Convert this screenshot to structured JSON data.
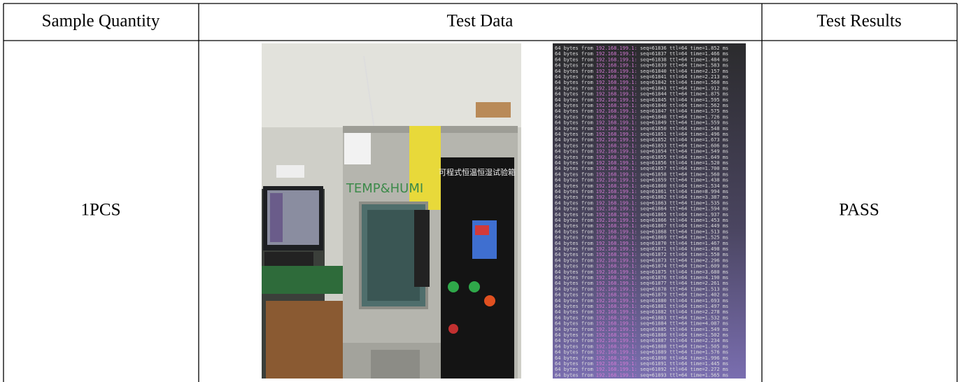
{
  "table": {
    "header": [
      "Sample Quantity",
      "Test Data",
      "Test Results"
    ],
    "rows": [
      [
        "1PCS",
        "PASS"
      ]
    ]
  },
  "photo": {
    "chamber_label": "TEMP&HUMI",
    "panel_title": "可程式恒温恒湿试验箱"
  },
  "terminal": {
    "lines": [
      [
        "64 bytes from",
        "192.168.199.1:",
        "seq=61836 ttl=64 time=1.852 ms"
      ],
      [
        "64 bytes from",
        "192.168.199.1:",
        "seq=61837 ttl=64 time=1.466 ms"
      ],
      [
        "64 bytes from",
        "192.168.199.1:",
        "seq=61838 ttl=64 time=1.484 ms"
      ],
      [
        "64 bytes from",
        "192.168.199.1:",
        "seq=61839 ttl=64 time=1.583 ms"
      ],
      [
        "64 bytes from",
        "192.168.199.1:",
        "seq=61840 ttl=64 time=2.157 ms"
      ],
      [
        "64 bytes from",
        "192.168.199.1:",
        "seq=61841 ttl=64 time=2.213 ms"
      ],
      [
        "64 bytes from",
        "192.168.199.1:",
        "seq=61842 ttl=64 time=1.560 ms"
      ],
      [
        "64 bytes from",
        "192.168.199.1:",
        "seq=61843 ttl=64 time=1.912 ms"
      ],
      [
        "64 bytes from",
        "192.168.199.1:",
        "seq=61844 ttl=64 time=1.875 ms"
      ],
      [
        "64 bytes from",
        "192.168.199.1:",
        "seq=61845 ttl=64 time=1.595 ms"
      ],
      [
        "64 bytes from",
        "192.168.199.1:",
        "seq=61846 ttl=64 time=1.562 ms"
      ],
      [
        "64 bytes from",
        "192.168.199.1:",
        "seq=61847 ttl=64 time=1.575 ms"
      ],
      [
        "64 bytes from",
        "192.168.199.1:",
        "seq=61848 ttl=64 time=1.726 ms"
      ],
      [
        "64 bytes from",
        "192.168.199.1:",
        "seq=61849 ttl=64 time=1.559 ms"
      ],
      [
        "64 bytes from",
        "192.168.199.1:",
        "seq=61850 ttl=64 time=1.548 ms"
      ],
      [
        "64 bytes from",
        "192.168.199.1:",
        "seq=61851 ttl=64 time=1.496 ms"
      ],
      [
        "64 bytes from",
        "192.168.199.1:",
        "seq=61852 ttl=64 time=1.673 ms"
      ],
      [
        "64 bytes from",
        "192.168.199.1:",
        "seq=61853 ttl=64 time=1.606 ms"
      ],
      [
        "64 bytes from",
        "192.168.199.1:",
        "seq=61854 ttl=64 time=1.549 ms"
      ],
      [
        "64 bytes from",
        "192.168.199.1:",
        "seq=61855 ttl=64 time=1.649 ms"
      ],
      [
        "64 bytes from",
        "192.168.199.1:",
        "seq=61856 ttl=64 time=1.520 ms"
      ],
      [
        "64 bytes from",
        "192.168.199.1:",
        "seq=61857 ttl=64 time=1.700 ms"
      ],
      [
        "64 bytes from",
        "192.168.199.1:",
        "seq=61858 ttl=64 time=1.560 ms"
      ],
      [
        "64 bytes from",
        "192.168.199.1:",
        "seq=61859 ttl=64 time=1.438 ms"
      ],
      [
        "64 bytes from",
        "192.168.199.1:",
        "seq=61860 ttl=64 time=1.534 ms"
      ],
      [
        "64 bytes from",
        "192.168.199.1:",
        "seq=61861 ttl=64 time=8.994 ms"
      ],
      [
        "64 bytes from",
        "192.168.199.1:",
        "seq=61862 ttl=64 time=3.387 ms"
      ],
      [
        "64 bytes from",
        "192.168.199.1:",
        "seq=61863 ttl=64 time=1.535 ms"
      ],
      [
        "64 bytes from",
        "192.168.199.1:",
        "seq=61864 ttl=64 time=1.594 ms"
      ],
      [
        "64 bytes from",
        "192.168.199.1:",
        "seq=61865 ttl=64 time=1.937 ms"
      ],
      [
        "64 bytes from",
        "192.168.199.1:",
        "seq=61866 ttl=64 time=1.453 ms"
      ],
      [
        "64 bytes from",
        "192.168.199.1:",
        "seq=61867 ttl=64 time=1.449 ms"
      ],
      [
        "64 bytes from",
        "192.168.199.1:",
        "seq=61868 ttl=64 time=1.513 ms"
      ],
      [
        "64 bytes from",
        "192.168.199.1:",
        "seq=61869 ttl=64 time=1.525 ms"
      ],
      [
        "64 bytes from",
        "192.168.199.1:",
        "seq=61870 ttl=64 time=1.467 ms"
      ],
      [
        "64 bytes from",
        "192.168.199.1:",
        "seq=61871 ttl=64 time=1.498 ms"
      ],
      [
        "64 bytes from",
        "192.168.199.1:",
        "seq=61872 ttl=64 time=1.550 ms"
      ],
      [
        "64 bytes from",
        "192.168.199.1:",
        "seq=61873 ttl=64 time=2.296 ms"
      ],
      [
        "64 bytes from",
        "192.168.199.1:",
        "seq=61874 ttl=64 time=1.609 ms"
      ],
      [
        "64 bytes from",
        "192.168.199.1:",
        "seq=61875 ttl=64 time=3.680 ms"
      ],
      [
        "64 bytes from",
        "192.168.199.1:",
        "seq=61876 ttl=64 time=4.190 ms"
      ],
      [
        "64 bytes from",
        "192.168.199.1:",
        "seq=61877 ttl=64 time=2.261 ms"
      ],
      [
        "64 bytes from",
        "192.168.199.1:",
        "seq=61878 ttl=64 time=1.513 ms"
      ],
      [
        "64 bytes from",
        "192.168.199.1:",
        "seq=61879 ttl=64 time=1.402 ms"
      ],
      [
        "64 bytes from",
        "192.168.199.1:",
        "seq=61880 ttl=64 time=1.693 ms"
      ],
      [
        "64 bytes from",
        "192.168.199.1:",
        "seq=61881 ttl=64 time=1.497 ms"
      ],
      [
        "64 bytes from",
        "192.168.199.1:",
        "seq=61882 ttl=64 time=2.278 ms"
      ],
      [
        "64 bytes from",
        "192.168.199.1:",
        "seq=61883 ttl=64 time=1.532 ms"
      ],
      [
        "64 bytes from",
        "192.168.199.1:",
        "seq=61884 ttl=64 time=4.087 ms"
      ],
      [
        "64 bytes from",
        "192.168.199.1:",
        "seq=61885 ttl=64 time=1.549 ms"
      ],
      [
        "64 bytes from",
        "192.168.199.1:",
        "seq=61886 ttl=64 time=1.502 ms"
      ],
      [
        "64 bytes from",
        "192.168.199.1:",
        "seq=61887 ttl=64 time=2.234 ms"
      ],
      [
        "64 bytes from",
        "192.168.199.1:",
        "seq=61888 ttl=64 time=1.505 ms"
      ],
      [
        "64 bytes from",
        "192.168.199.1:",
        "seq=61889 ttl=64 time=1.576 ms"
      ],
      [
        "64 bytes from",
        "192.168.199.1:",
        "seq=61890 ttl=64 time=1.996 ms"
      ],
      [
        "64 bytes from",
        "192.168.199.1:",
        "seq=61891 ttl=64 time=1.445 ms"
      ],
      [
        "64 bytes from",
        "192.168.199.1:",
        "seq=61892 ttl=64 time=2.272 ms"
      ],
      [
        "64 bytes from",
        "192.168.199.1:",
        "seq=61893 ttl=64 time=1.565 ms"
      ]
    ]
  }
}
